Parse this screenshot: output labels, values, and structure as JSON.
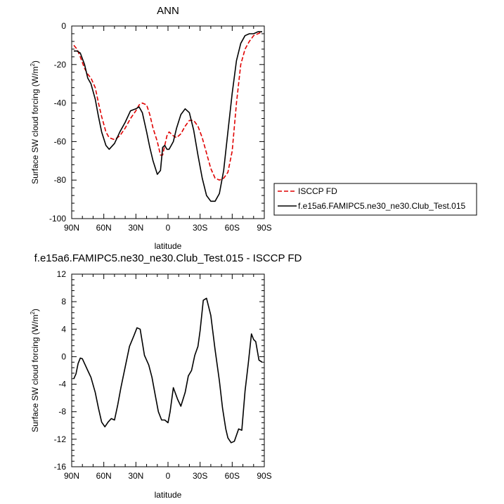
{
  "chart_data": [
    {
      "type": "line",
      "title": "ANN",
      "xlabel": "latitude",
      "ylabel": "Surface SW cloud forcing (W/m",
      "ylabel_sup": "2",
      "ylabel_tail": ")",
      "xlim": [
        90,
        -90
      ],
      "ylim": [
        -100,
        0
      ],
      "x_ticks": [
        90,
        60,
        30,
        0,
        -30,
        -60,
        -90
      ],
      "x_tick_labels": [
        "90N",
        "60N",
        "30N",
        "0",
        "30S",
        "60S",
        "90S"
      ],
      "y_ticks": [
        0,
        -20,
        -40,
        -60,
        -80,
        -100
      ],
      "y_tick_labels": [
        "0",
        "-20",
        "-40",
        "-60",
        "-80",
        "-100"
      ],
      "legend": [
        "ISCCP FD",
        "f.e15a6.FAMIPC5.ne30_ne30.Club_Test.015"
      ],
      "legend_position": "right-outside",
      "series": [
        {
          "name": "ISCCP FD",
          "color": "#e00000",
          "dash": "dashed",
          "x": [
            88,
            85,
            82,
            78,
            75,
            72,
            68,
            65,
            62,
            58,
            55,
            50,
            45,
            40,
            35,
            30,
            27,
            24,
            20,
            17,
            14,
            10,
            7,
            5,
            3,
            1,
            -1,
            -3,
            -5,
            -8,
            -12,
            -16,
            -20,
            -24,
            -28,
            -32,
            -36,
            -40,
            -44,
            -48,
            -52,
            -56,
            -60,
            -64,
            -68,
            -72,
            -76,
            -80,
            -84,
            -88
          ],
          "values": [
            -10,
            -12,
            -16,
            -22,
            -25,
            -27,
            -32,
            -40,
            -47,
            -55,
            -58,
            -59,
            -57,
            -53,
            -48,
            -44,
            -41,
            -40,
            -41,
            -46,
            -53,
            -60,
            -67,
            -67,
            -62,
            -57,
            -55,
            -56,
            -57,
            -58,
            -56,
            -52,
            -49,
            -49,
            -52,
            -58,
            -66,
            -74,
            -79,
            -80,
            -79,
            -76,
            -65,
            -40,
            -20,
            -12,
            -8,
            -5,
            -4,
            -3
          ]
        },
        {
          "name": "f.e15a6.FAMIPC5.ne30_ne30.Club_Test.015",
          "color": "#000000",
          "dash": "solid",
          "x": [
            88,
            85,
            82,
            78,
            75,
            72,
            68,
            65,
            62,
            58,
            55,
            50,
            45,
            40,
            35,
            30,
            27,
            24,
            20,
            17,
            14,
            10,
            7,
            5,
            3,
            1,
            -1,
            -3,
            -5,
            -8,
            -12,
            -16,
            -20,
            -24,
            -28,
            -32,
            -36,
            -40,
            -44,
            -48,
            -52,
            -56,
            -60,
            -64,
            -68,
            -72,
            -76,
            -80,
            -84,
            -88
          ],
          "values": [
            -13,
            -13,
            -14,
            -20,
            -27,
            -30,
            -38,
            -47,
            -55,
            -62,
            -64,
            -61,
            -55,
            -50,
            -44,
            -43,
            -42,
            -45,
            -55,
            -63,
            -70,
            -77,
            -75,
            -63,
            -62,
            -64,
            -64,
            -62,
            -60,
            -53,
            -46,
            -43,
            -45,
            -54,
            -67,
            -79,
            -88,
            -91,
            -91,
            -87,
            -75,
            -55,
            -35,
            -18,
            -9,
            -5,
            -4,
            -4,
            -3,
            -3
          ]
        }
      ]
    },
    {
      "type": "line",
      "title": "f.e15a6.FAMIPC5.ne30_ne30.Club_Test.015 - ISCCP FD",
      "xlabel": "latitude",
      "ylabel": "Surface SW cloud forcing (W/m",
      "ylabel_sup": "2",
      "ylabel_tail": ")",
      "xlim": [
        90,
        -90
      ],
      "ylim": [
        -16,
        12
      ],
      "x_ticks": [
        90,
        60,
        30,
        0,
        -30,
        -60,
        -90
      ],
      "x_tick_labels": [
        "90N",
        "60N",
        "30N",
        "0",
        "30S",
        "60S",
        "90S"
      ],
      "y_ticks": [
        12,
        8,
        4,
        0,
        -4,
        -8,
        -12,
        -16
      ],
      "y_tick_labels": [
        "12",
        "8",
        "4",
        "0",
        "-4",
        "-8",
        "-12",
        "-16"
      ],
      "series": [
        {
          "color": "#000000",
          "dash": "solid",
          "x": [
            88,
            86,
            84,
            82,
            80,
            78,
            75,
            72,
            68,
            65,
            62,
            59,
            56,
            53,
            50,
            47,
            44,
            40,
            36,
            32,
            29,
            26,
            22,
            18,
            15,
            12,
            9,
            6,
            3,
            0,
            -2,
            -5,
            -9,
            -12,
            -16,
            -19,
            -22,
            -25,
            -28,
            -30,
            -33,
            -36,
            -40,
            -44,
            -48,
            -51,
            -54,
            -56,
            -59,
            -62,
            -66,
            -69,
            -72,
            -75,
            -78,
            -80,
            -82,
            -85,
            -88
          ],
          "values": [
            -3.2,
            -2.5,
            -1.0,
            -0.2,
            -0.3,
            -1.0,
            -2.0,
            -3.0,
            -5.2,
            -7.5,
            -9.5,
            -10.2,
            -9.5,
            -9.0,
            -9.2,
            -7.0,
            -4.5,
            -1.5,
            1.5,
            3.0,
            4.2,
            4.0,
            0.2,
            -1.2,
            -3.0,
            -5.5,
            -8.0,
            -9.2,
            -9.2,
            -9.6,
            -8.0,
            -4.5,
            -6.2,
            -7.2,
            -5.2,
            -2.8,
            -2.0,
            0.2,
            1.5,
            3.8,
            8.2,
            8.5,
            6.0,
            1.0,
            -3.5,
            -7.5,
            -10.5,
            -11.8,
            -12.5,
            -12.3,
            -10.5,
            -10.7,
            -5.0,
            -1.0,
            3.3,
            2.5,
            2.2,
            -0.5,
            -0.8
          ]
        }
      ]
    }
  ]
}
